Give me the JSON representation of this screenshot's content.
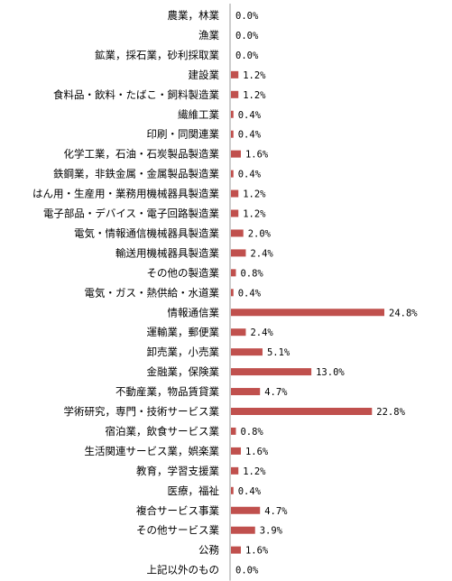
{
  "chart_data": {
    "type": "bar",
    "orientation": "horizontal",
    "title": "",
    "xlabel": "",
    "ylabel": "",
    "xlim": [
      0,
      26
    ],
    "grid": false,
    "legend": "none",
    "bar_color": "#c0504d",
    "categories": [
      "農業，林業",
      "漁業",
      "鉱業，採石業，砂利採取業",
      "建設業",
      "食料品・飲料・たばこ・飼料製造業",
      "繊維工業",
      "印刷・同関連業",
      "化学工業，石油・石炭製品製造業",
      "鉄鋼業，非鉄金属・金属製品製造業",
      "はん用・生産用・業務用機械器具製造業",
      "電子部品・デバイス・電子回路製造業",
      "電気・情報通信機械器具製造業",
      "輸送用機械器具製造業",
      "その他の製造業",
      "電気・ガス・熱供給・水道業",
      "情報通信業",
      "運輸業，郵便業",
      "卸売業，小売業",
      "金融業，保険業",
      "不動産業，物品賃貸業",
      "学術研究，専門・技術サービス業",
      "宿泊業，飲食サービス業",
      "生活関連サービス業，娯楽業",
      "教育，学習支援業",
      "医療，福祉",
      "複合サービス事業",
      "その他サービス業",
      "公務",
      "上記以外のもの"
    ],
    "values": [
      0.0,
      0.0,
      0.0,
      1.2,
      1.2,
      0.4,
      0.4,
      1.6,
      0.4,
      1.2,
      1.2,
      2.0,
      2.4,
      0.8,
      0.4,
      24.8,
      2.4,
      5.1,
      13.0,
      4.7,
      22.8,
      0.8,
      1.6,
      1.2,
      0.4,
      4.7,
      3.9,
      1.6,
      0.0
    ],
    "value_labels": [
      "0.0%",
      "0.0%",
      "0.0%",
      "1.2%",
      "1.2%",
      "0.4%",
      "0.4%",
      "1.6%",
      "0.4%",
      "1.2%",
      "1.2%",
      "2.0%",
      "2.4%",
      "0.8%",
      "0.4%",
      "24.8%",
      "2.4%",
      "5.1%",
      "13.0%",
      "4.7%",
      "22.8%",
      "0.8%",
      "1.6%",
      "1.2%",
      "0.4%",
      "4.7%",
      "3.9%",
      "1.6%",
      "0.0%"
    ]
  }
}
